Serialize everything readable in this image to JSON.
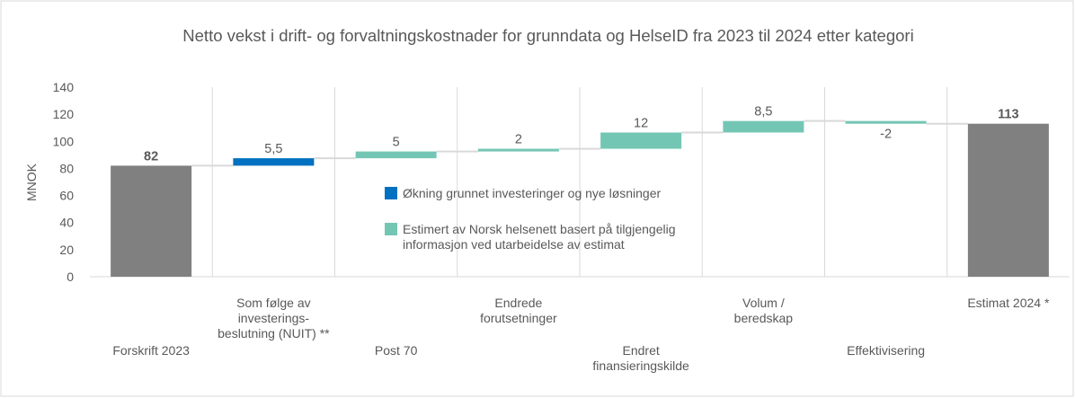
{
  "chart_data": {
    "type": "waterfall",
    "title": "Netto vekst i drift- og forvaltningskostnader for grunndata og HelseID fra 2023 til 2024 etter kategori",
    "y_label": "MNOK",
    "categories": [
      [
        "Forskrift 2023"
      ],
      [
        "Som følge av",
        "investerings-",
        "beslutning (NUIT) **"
      ],
      [
        "Post 70"
      ],
      [
        "Endrede",
        "forutsetninger"
      ],
      [
        "Endret",
        "finansieringskilde"
      ],
      [
        "Volum /",
        "beredskap"
      ],
      [
        "Effektivisering"
      ],
      [
        "Estimat 2024 *"
      ]
    ],
    "values": [
      82,
      5.5,
      5,
      2,
      12,
      8.5,
      -2,
      113
    ],
    "value_labels": [
      "82",
      "5,5",
      "5",
      "2",
      "12",
      "8,5",
      "-2",
      "113"
    ],
    "bar_kinds": [
      "total",
      "delta",
      "delta",
      "delta",
      "delta",
      "delta",
      "delta",
      "total"
    ],
    "colors": [
      "#808080",
      "#0070c0",
      "#74c6b4",
      "#74c6b4",
      "#74c6b4",
      "#74c6b4",
      "#74c6b4",
      "#808080"
    ],
    "ylim": [
      0,
      140
    ],
    "yticks": [
      0,
      20,
      40,
      60,
      80,
      100,
      120,
      140
    ],
    "legend": [
      {
        "lines": [
          "Økning grunnet investeringer og nye løsninger"
        ],
        "color": "#0070c0"
      },
      {
        "lines": [
          "Estimert av Norsk helsenett basert på tilgjengelig",
          "informasjon ved utarbeidelse av estimat"
        ],
        "color": "#74c6b4"
      }
    ]
  }
}
